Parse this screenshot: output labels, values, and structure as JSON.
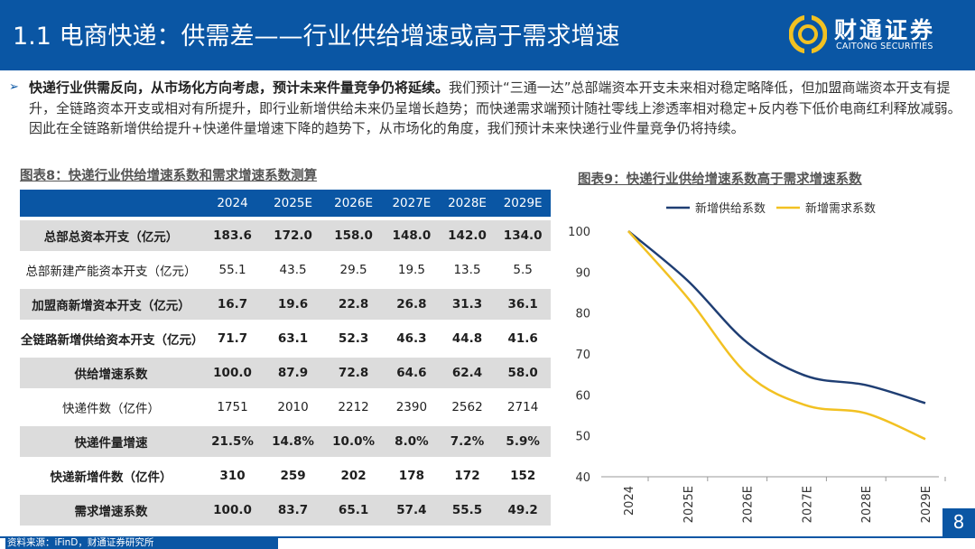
{
  "header": {
    "title": "1.1 电商快递：供需差——行业供给增速或高于需求增速",
    "logo_name": "财通证券",
    "logo_en": "CAITONG SECURITIES"
  },
  "bullet": {
    "bold": "快递行业供需反向，从市场化方向考虑，预计未来件量竞争仍将延续。",
    "text": "我们预计“三通一达”总部端资本开支未来相对稳定略降低，但加盟商端资本开支有提升，全链路资本开支或相对有所提升，即行业新增供给未来仍呈增长趋势；而快递需求端预计随社零线上渗透率相对稳定+反内卷下低价电商红利释放减弱。因此在全链路新增供给提升+快递件量增速下降的趋势下，从市场化的角度，我们预计未来快递行业件量竞争仍将持续。"
  },
  "table": {
    "caption": "图表8：快递行业供给增速系数和需求增速系数测算",
    "headers": [
      "",
      "2024",
      "2025E",
      "2026E",
      "2027E",
      "2028E",
      "2029E"
    ],
    "rows": [
      {
        "label": "总部总资本开支（亿元）",
        "values": [
          "183.6",
          "172.0",
          "158.0",
          "148.0",
          "142.0",
          "134.0"
        ]
      },
      {
        "label": "总部新建产能资本开支（亿元）",
        "values": [
          "55.1",
          "43.5",
          "29.5",
          "19.5",
          "13.5",
          "5.5"
        ]
      },
      {
        "label": "加盟商新增资本开支（亿元）",
        "values": [
          "16.7",
          "19.6",
          "22.8",
          "26.8",
          "31.3",
          "36.1"
        ]
      },
      {
        "label": "全链路新增供给资本开支（亿元）",
        "values": [
          "71.7",
          "63.1",
          "52.3",
          "46.3",
          "44.8",
          "41.6"
        ]
      },
      {
        "label": "供给增速系数",
        "values": [
          "100.0",
          "87.9",
          "72.8",
          "64.6",
          "62.4",
          "58.0"
        ]
      },
      {
        "label": "快递件数（亿件）",
        "values": [
          "1751",
          "2010",
          "2212",
          "2390",
          "2562",
          "2714"
        ]
      },
      {
        "label": "快递件量增速",
        "values": [
          "21.5%",
          "14.8%",
          "10.0%",
          "8.0%",
          "7.2%",
          "5.9%"
        ]
      },
      {
        "label": "快递新增件数（亿件）",
        "values": [
          "310",
          "259",
          "202",
          "178",
          "172",
          "152"
        ]
      },
      {
        "label": "需求增速系数",
        "values": [
          "100.0",
          "83.7",
          "65.1",
          "57.4",
          "55.5",
          "49.2"
        ]
      }
    ]
  },
  "chart_data": {
    "type": "line",
    "title": "图表9：快递行业供给增速系数高于需求增速系数",
    "categories": [
      "2024",
      "2025E",
      "2026E",
      "2027E",
      "2028E",
      "2029E"
    ],
    "series": [
      {
        "name": "新增供给系数",
        "color": "#1f3e73",
        "values": [
          100.0,
          87.9,
          72.8,
          64.6,
          62.4,
          58.0
        ]
      },
      {
        "name": "新增需求系数",
        "color": "#f2c122",
        "values": [
          100.0,
          83.7,
          65.1,
          57.4,
          55.5,
          49.2
        ]
      }
    ],
    "ylim": [
      40,
      100
    ],
    "yticks": [
      40,
      50,
      60,
      70,
      80,
      90,
      100
    ],
    "xlabel": "",
    "ylabel": "",
    "legend": "top"
  },
  "footer": {
    "source": "资料来源：iFinD，财通证券研究所",
    "page": "8"
  },
  "colors": {
    "brand": "#0a56a4",
    "shade": "#dcdcdc"
  }
}
